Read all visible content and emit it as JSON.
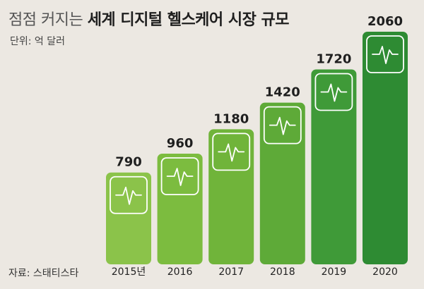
{
  "header": {
    "title_light": "점점 커지는 ",
    "title_bold": "세계 디지털 헬스케어 시장 규모",
    "unit": "단위: 억 달러"
  },
  "footer": {
    "source": "자료: 스태티스타"
  },
  "chart_data": {
    "type": "bar",
    "title": "점점 커지는 세계 디지털 헬스케어 시장 규모",
    "ylabel": "억 달러",
    "xlabel": "",
    "categories": [
      "2015년",
      "2016",
      "2017",
      "2018",
      "2019",
      "2020"
    ],
    "values": [
      790,
      960,
      1180,
      1420,
      1720,
      2060
    ],
    "ylim": [
      0,
      2060
    ],
    "grid": false,
    "icon": "heartbeat-icon",
    "colors": {
      "bars": [
        "#8bc34a",
        "#7cbc3f",
        "#70b43a",
        "#5eaa38",
        "#3f9a38",
        "#2e8b33"
      ],
      "icon_box": "#ffffff",
      "background": "#ece8e2"
    }
  }
}
